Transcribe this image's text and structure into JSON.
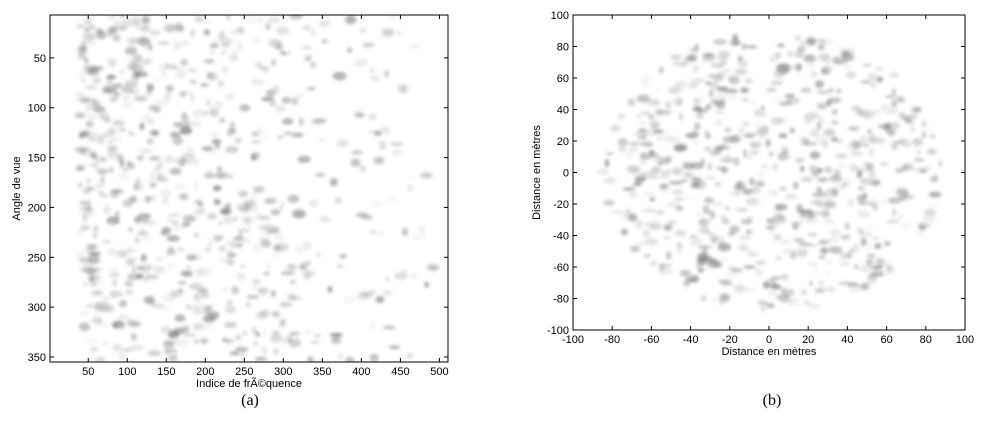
{
  "chart_data": [
    {
      "type": "image",
      "xlabel": "Indice de frÃ©quence",
      "ylabel": "Angle de vue",
      "caption": "(a)",
      "xlim": [
        1,
        511
      ],
      "ylim": [
        355,
        7
      ],
      "xticks": [
        50,
        100,
        150,
        200,
        250,
        300,
        350,
        400,
        450,
        500
      ],
      "yticks": [
        50,
        100,
        150,
        200,
        250,
        300,
        350
      ]
    },
    {
      "type": "image",
      "xlabel": "Distance en mètres",
      "ylabel": "Distance en mètres",
      "caption": "(b)",
      "xlim": [
        -100,
        100
      ],
      "ylim": [
        -100,
        100
      ],
      "xticks": [
        -100,
        -80,
        -60,
        -40,
        -20,
        0,
        20,
        40,
        60,
        80,
        100
      ],
      "yticks": [
        -100,
        -80,
        -60,
        -40,
        -20,
        0,
        20,
        40,
        60,
        80,
        100
      ]
    }
  ]
}
